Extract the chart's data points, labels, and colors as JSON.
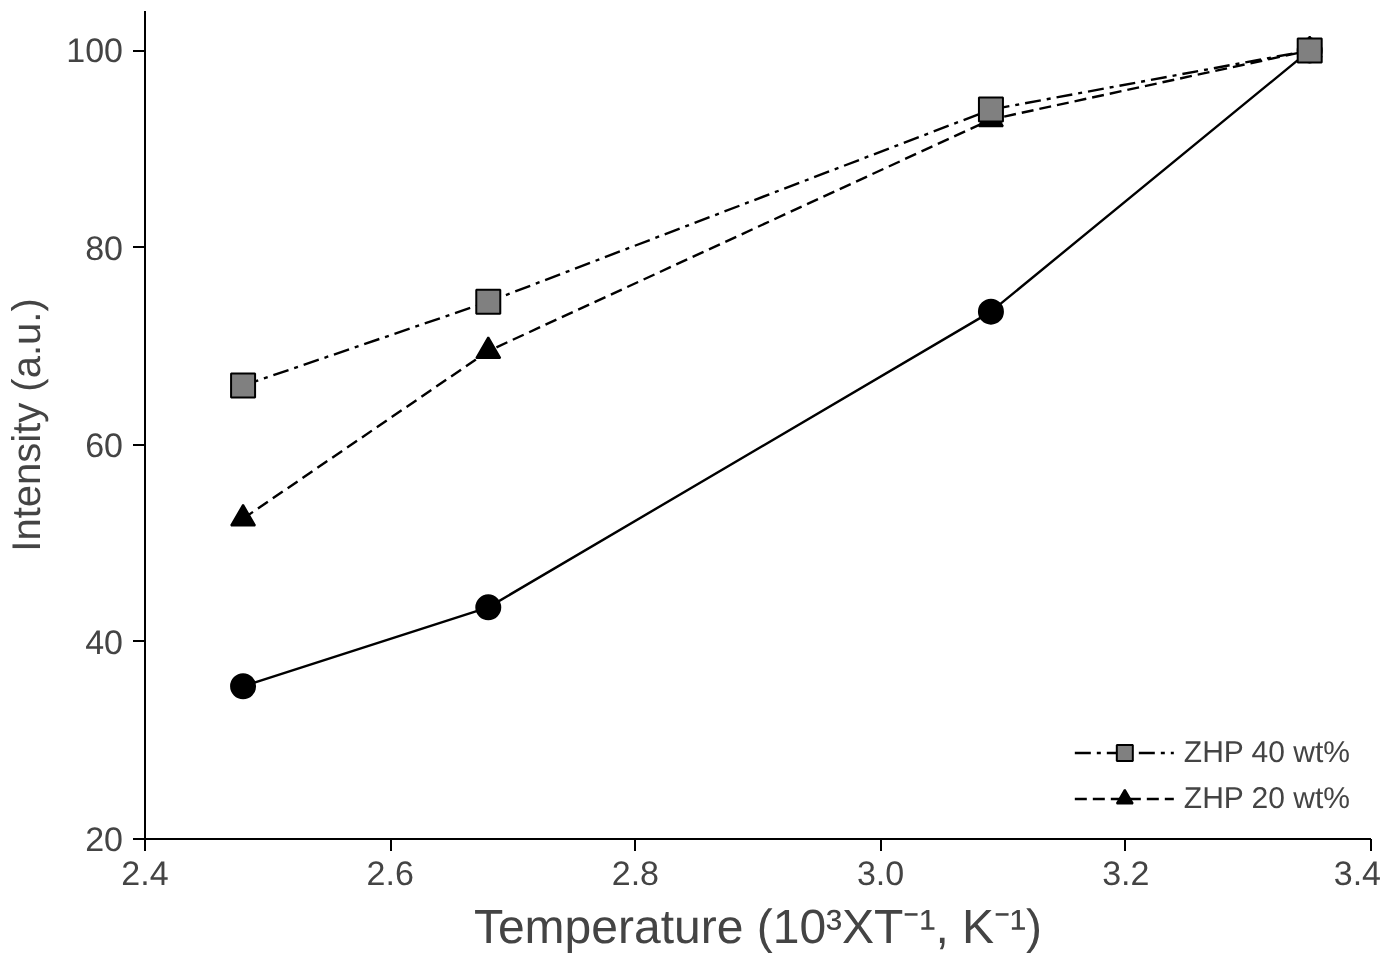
{
  "chart_data": {
    "type": "line",
    "xlabel": "Temperature (10³XT⁻¹, K⁻¹)",
    "ylabel": "Intensity (a.u.)",
    "x": [
      2.48,
      2.68,
      3.09,
      3.35
    ],
    "xlim": [
      2.4,
      3.4
    ],
    "xticks": [
      {
        "value": 2.4,
        "label": "2.4"
      },
      {
        "value": 2.6,
        "label": "2.6"
      },
      {
        "value": 2.8,
        "label": "2.8"
      },
      {
        "value": 3.0,
        "label": "3.0"
      },
      {
        "value": 3.2,
        "label": "3.2"
      },
      {
        "value": 3.4,
        "label": "3.4"
      }
    ],
    "ylim": [
      20,
      104
    ],
    "yticks": [
      20,
      40,
      60,
      80,
      100
    ],
    "grid": false,
    "legend": "bottom right",
    "series": [
      {
        "name": "ZHP 40 wt%",
        "color": "#808080",
        "marker": "square",
        "line_style": "dashdot",
        "values": [
          66,
          74.5,
          94,
          100
        ]
      },
      {
        "name": "ZHP 20 wt%",
        "color": "#000000",
        "marker": "triangle",
        "line_style": "dashed",
        "values": [
          52.5,
          69.5,
          93,
          100
        ]
      },
      {
        "color": "#000000",
        "marker": "circle",
        "line_style": "solid",
        "values": [
          35.5,
          43.5,
          73.5,
          100
        ]
      }
    ]
  }
}
